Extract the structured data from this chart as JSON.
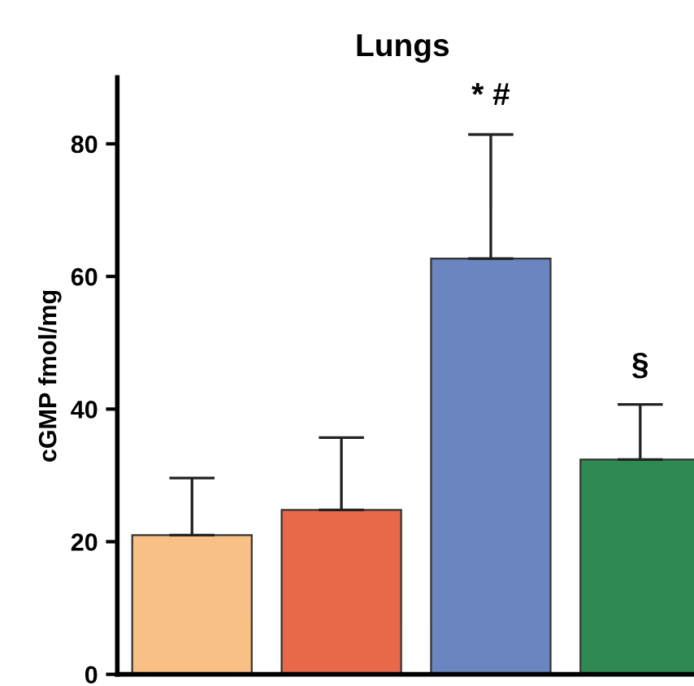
{
  "chart_data": {
    "type": "bar",
    "title": "Lungs",
    "ylabel": "cGMP fmol/mg",
    "categories": [
      null,
      null,
      null,
      null
    ],
    "values": [
      21.0,
      24.8,
      62.7,
      32.4
    ],
    "colors": [
      "#f9c086",
      "#e8694a",
      "#6a85c0",
      "#2e8a50"
    ],
    "errors": [
      [
        21.0,
        29.6
      ],
      [
        24.8,
        35.7
      ],
      [
        62.7,
        81.4
      ],
      [
        32.4,
        40.7
      ]
    ],
    "annotations": [
      "* #",
      "§"
    ],
    "ylim": [
      0,
      90
    ],
    "yticks": [
      0,
      20,
      40,
      60,
      80
    ],
    "grid": false,
    "legend": false
  }
}
